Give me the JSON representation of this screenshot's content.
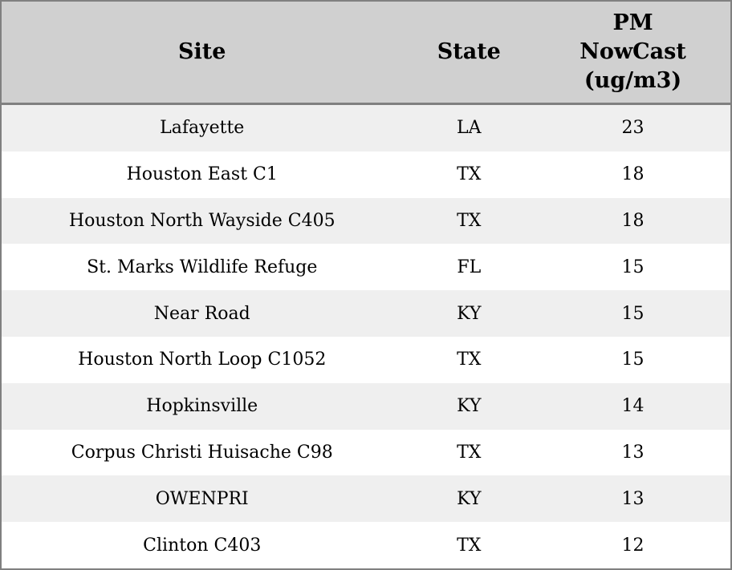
{
  "colors": {
    "header_bg": "#d0d0d0",
    "row_odd_bg": "#efefef",
    "row_even_bg": "#ffffff",
    "border": "#808080",
    "text": "#000000"
  },
  "table": {
    "header": {
      "site": "Site",
      "state": "State",
      "pm_lines": [
        "PM",
        "NowCast",
        "(ug/m3)"
      ]
    },
    "rows": [
      {
        "site": "Lafayette",
        "state": "LA",
        "pm": "23"
      },
      {
        "site": "Houston East C1",
        "state": "TX",
        "pm": "18"
      },
      {
        "site": "Houston North Wayside C405",
        "state": "TX",
        "pm": "18"
      },
      {
        "site": "St. Marks Wildlife Refuge",
        "state": "FL",
        "pm": "15"
      },
      {
        "site": "Near Road",
        "state": "KY",
        "pm": "15"
      },
      {
        "site": "Houston North Loop C1052",
        "state": "TX",
        "pm": "15"
      },
      {
        "site": "Hopkinsville",
        "state": "KY",
        "pm": "14"
      },
      {
        "site": "Corpus Christi Huisache C98",
        "state": "TX",
        "pm": "13"
      },
      {
        "site": "OWENPRI",
        "state": "KY",
        "pm": "13"
      },
      {
        "site": "Clinton C403",
        "state": "TX",
        "pm": "12"
      }
    ]
  },
  "chart_data": {
    "type": "table",
    "title": "",
    "columns": [
      "Site",
      "State",
      "PM NowCast (ug/m3)"
    ],
    "rows": [
      [
        "Lafayette",
        "LA",
        23
      ],
      [
        "Houston East C1",
        "TX",
        18
      ],
      [
        "Houston North Wayside C405",
        "TX",
        18
      ],
      [
        "St. Marks Wildlife Refuge",
        "FL",
        15
      ],
      [
        "Near Road",
        "KY",
        15
      ],
      [
        "Houston North Loop C1052",
        "TX",
        15
      ],
      [
        "Hopkinsville",
        "KY",
        14
      ],
      [
        "Corpus Christi Huisache C98",
        "TX",
        13
      ],
      [
        "OWENPRI",
        "KY",
        13
      ],
      [
        "Clinton C403",
        "TX",
        12
      ]
    ],
    "layout_hints": {
      "alternating_row_shading": true,
      "alignment": "center",
      "header_background": "#d0d0d0",
      "sorted_by": "PM NowCast descending"
    }
  }
}
